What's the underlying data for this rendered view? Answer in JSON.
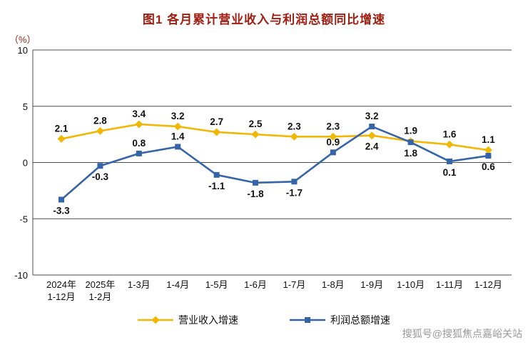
{
  "title": "图1  各月累计营业收入与利润总额同比增速",
  "watermark": "搜狐号@搜狐焦点嘉峪关站",
  "colors": {
    "title": "#9e1f12",
    "unit_label": "#9e1f12",
    "axis": "#4d4d4d",
    "watermark": "#9a9a9a",
    "revenue_series": "#f2b705",
    "profit_series": "#3565a8"
  },
  "chart_data": {
    "type": "line",
    "unit_label": "（%）",
    "categories": [
      "2024年\n1-12月",
      "2025年\n1-2月",
      "1-3月",
      "1-4月",
      "1-5月",
      "1-6月",
      "1-7月",
      "1-8月",
      "1-9月",
      "1-10月",
      "1-11月",
      "1-12月"
    ],
    "series": [
      {
        "name": "营业收入增速",
        "color": "#f2b705",
        "marker": "diamond",
        "values": [
          2.1,
          2.8,
          3.4,
          3.2,
          2.7,
          2.5,
          2.3,
          2.3,
          2.4,
          1.9,
          1.6,
          1.1
        ],
        "label_side": [
          "above",
          "above",
          "above",
          "above",
          "above",
          "above",
          "above",
          "above",
          "below",
          "above",
          "above",
          "above"
        ]
      },
      {
        "name": "利润总额增速",
        "color": "#3565a8",
        "marker": "square",
        "values": [
          -3.3,
          -0.3,
          0.8,
          1.4,
          -1.1,
          -1.8,
          -1.7,
          0.9,
          3.2,
          1.8,
          0.1,
          0.6
        ],
        "label_side": [
          "below",
          "below",
          "above",
          "above",
          "below",
          "below",
          "below",
          "above",
          "above",
          "below",
          "below",
          "below"
        ]
      }
    ],
    "ylim": [
      -10,
      10
    ],
    "yticks": [
      10,
      5,
      0,
      -5,
      -10
    ],
    "grid": true,
    "legend_position": "bottom"
  }
}
